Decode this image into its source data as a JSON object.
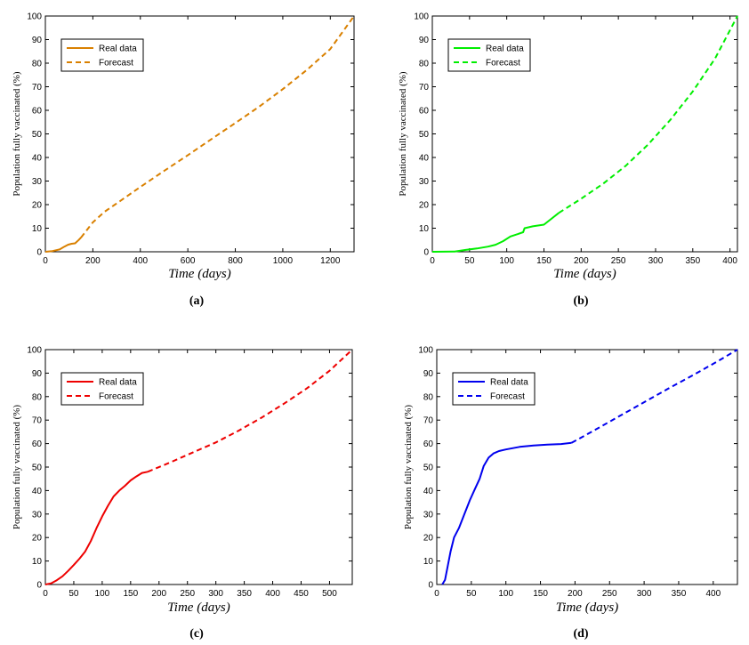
{
  "chart_data": [
    {
      "type": "line",
      "panel_label": "(a)",
      "xlabel": "Time (days)",
      "ylabel": "Population fully vaccinated (%)",
      "xlim": [
        0,
        1300
      ],
      "ylim": [
        0,
        100
      ],
      "xticks": [
        0,
        200,
        400,
        600,
        800,
        1000,
        1200
      ],
      "yticks": [
        0,
        10,
        20,
        30,
        40,
        50,
        60,
        70,
        80,
        90,
        100
      ],
      "legend_position": "top-left",
      "color": "#d98000",
      "series": [
        {
          "name": "Real data",
          "style": "solid",
          "x": [
            0,
            30,
            60,
            80,
            95,
            110,
            125,
            140,
            150
          ],
          "y": [
            0,
            0.3,
            1.0,
            2.2,
            3.0,
            3.4,
            3.6,
            5.0,
            6.0
          ]
        },
        {
          "name": "Forecast",
          "style": "dashed",
          "x": [
            150,
            200,
            250,
            300,
            400,
            500,
            600,
            700,
            800,
            900,
            1000,
            1100,
            1200,
            1300
          ],
          "y": [
            6.0,
            12.5,
            17.0,
            20.5,
            27.5,
            34.3,
            41.0,
            47.8,
            54.6,
            61.5,
            69.0,
            77.0,
            86.0,
            100
          ]
        }
      ]
    },
    {
      "type": "line",
      "panel_label": "(b)",
      "xlabel": "Time (days)",
      "ylabel": "Population fully vaccinated (%)",
      "xlim": [
        0,
        410
      ],
      "ylim": [
        0,
        100
      ],
      "xticks": [
        0,
        50,
        100,
        150,
        200,
        250,
        300,
        350,
        400
      ],
      "yticks": [
        0,
        10,
        20,
        30,
        40,
        50,
        60,
        70,
        80,
        90,
        100
      ],
      "legend_position": "top-left",
      "color": "#00ee00",
      "series": [
        {
          "name": "Real data",
          "style": "solid",
          "x": [
            0,
            30,
            45,
            60,
            75,
            85,
            95,
            105,
            115,
            122,
            124,
            135,
            150,
            160,
            170
          ],
          "y": [
            0,
            0.1,
            0.8,
            1.4,
            2.2,
            3.0,
            4.5,
            6.5,
            7.5,
            8.3,
            10.0,
            10.8,
            11.5,
            14.0,
            16.5
          ]
        },
        {
          "name": "Forecast",
          "style": "dashed",
          "x": [
            170,
            200,
            230,
            260,
            290,
            320,
            350,
            380,
            410
          ],
          "y": [
            16.5,
            22.5,
            29.0,
            36.5,
            45.5,
            56.0,
            68.0,
            82.0,
            100
          ]
        }
      ]
    },
    {
      "type": "line",
      "panel_label": "(c)",
      "xlabel": "Time (days)",
      "ylabel": "Population fully vaccinated (%)",
      "xlim": [
        0,
        540
      ],
      "ylim": [
        0,
        100
      ],
      "xticks": [
        0,
        50,
        100,
        150,
        200,
        250,
        300,
        350,
        400,
        450,
        500
      ],
      "yticks": [
        0,
        10,
        20,
        30,
        40,
        50,
        60,
        70,
        80,
        90,
        100
      ],
      "legend_position": "top-left",
      "color": "#ee0000",
      "series": [
        {
          "name": "Real data",
          "style": "solid",
          "x": [
            0,
            10,
            20,
            30,
            40,
            50,
            60,
            70,
            80,
            90,
            100,
            110,
            120,
            130,
            140,
            150,
            160,
            170,
            180
          ],
          "y": [
            0,
            0.5,
            1.8,
            3.5,
            5.8,
            8.3,
            11.0,
            14.0,
            18.5,
            24.0,
            29.0,
            33.5,
            37.5,
            40.0,
            42.0,
            44.3,
            46.0,
            47.5,
            48.0
          ]
        },
        {
          "name": "Forecast",
          "style": "dashed",
          "x": [
            180,
            220,
            260,
            300,
            340,
            380,
            420,
            460,
            500,
            540
          ],
          "y": [
            48.0,
            52.0,
            56.3,
            60.5,
            65.5,
            71.0,
            77.0,
            83.5,
            91.0,
            100
          ]
        }
      ]
    },
    {
      "type": "line",
      "panel_label": "(d)",
      "xlabel": "Time (days)",
      "ylabel": "Population fully vaccinated (%)",
      "xlim": [
        0,
        435
      ],
      "ylim": [
        0,
        100
      ],
      "xticks": [
        0,
        50,
        100,
        150,
        200,
        250,
        300,
        350,
        400
      ],
      "yticks": [
        0,
        10,
        20,
        30,
        40,
        50,
        60,
        70,
        80,
        90,
        100
      ],
      "legend_position": "top-left",
      "color": "#0000ee",
      "series": [
        {
          "name": "Real data",
          "style": "solid",
          "x": [
            8,
            12,
            16,
            20,
            25,
            32,
            40,
            48,
            55,
            62,
            68,
            75,
            82,
            90,
            100,
            120,
            140,
            160,
            180,
            195
          ],
          "y": [
            0,
            2.0,
            8.0,
            14.0,
            20.0,
            24.0,
            30.0,
            36.0,
            40.5,
            45.0,
            50.5,
            54.0,
            55.8,
            56.8,
            57.5,
            58.6,
            59.2,
            59.6,
            59.8,
            60.3
          ]
        },
        {
          "name": "Forecast",
          "style": "dashed",
          "x": [
            195,
            230,
            265,
            300,
            335,
            370,
            405,
            435
          ],
          "y": [
            60.3,
            66.0,
            71.8,
            77.6,
            83.4,
            89.0,
            94.8,
            100
          ]
        }
      ]
    }
  ]
}
